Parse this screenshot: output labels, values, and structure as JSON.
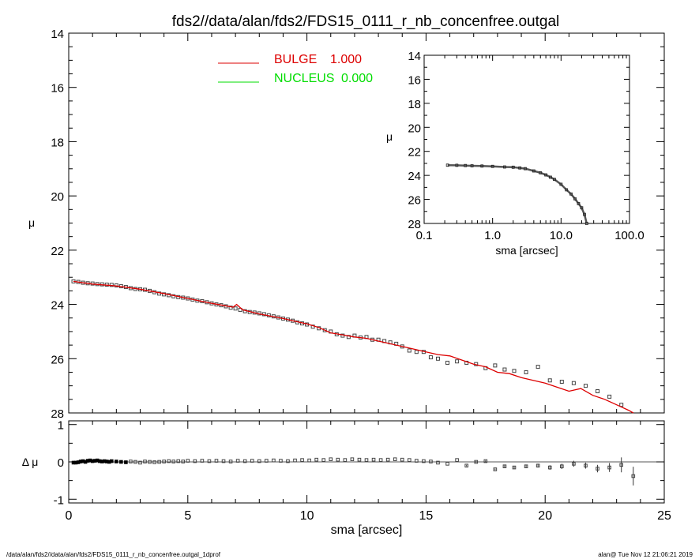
{
  "title": "fds2//data/alan/fds2/FDS15_0111_r_nb_concenfree.outgal",
  "footer_left": "/data/alan/fds2//data/alan/fds2/FDS15_0111_r_nb_concenfree.outgal_1dprof",
  "footer_right": "alan@  Tue Nov 12 21:06:21 2019",
  "colors": {
    "bulge": "#dd0000",
    "nucleus": "#00dd00",
    "data": "#555555",
    "axis": "#000000"
  },
  "chart_data": [
    {
      "id": "main",
      "type": "line",
      "xlabel": "",
      "ylabel": "μ",
      "xlim": [
        0,
        25
      ],
      "ylim": [
        28,
        14
      ],
      "yticks": [
        14,
        16,
        18,
        20,
        22,
        24,
        26,
        28
      ],
      "legend": {
        "placement": "top-center",
        "entries": [
          {
            "name": "BULGE",
            "value": "1.000",
            "color": "#dd0000"
          },
          {
            "name": "NUCLEUS",
            "value": "0.000",
            "color": "#00dd00"
          }
        ]
      },
      "series": [
        {
          "name": "data",
          "style": "square-markers",
          "x": [
            0.2,
            0.4,
            0.6,
            0.8,
            1.0,
            1.2,
            1.4,
            1.6,
            1.8,
            2.0,
            2.2,
            2.4,
            2.6,
            2.8,
            3.0,
            3.2,
            3.4,
            3.6,
            3.8,
            4.0,
            4.2,
            4.4,
            4.6,
            4.8,
            5.0,
            5.2,
            5.4,
            5.6,
            5.8,
            6.0,
            6.2,
            6.4,
            6.6,
            6.8,
            7.0,
            7.2,
            7.4,
            7.6,
            7.8,
            8.0,
            8.2,
            8.4,
            8.6,
            8.8,
            9.0,
            9.2,
            9.4,
            9.6,
            9.8,
            10.0,
            10.25,
            10.5,
            10.75,
            11.0,
            11.25,
            11.5,
            11.75,
            12.0,
            12.25,
            12.5,
            12.75,
            13.0,
            13.25,
            13.5,
            13.75,
            14.0,
            14.3,
            14.6,
            14.9,
            15.2,
            15.5,
            15.9,
            16.3,
            16.7,
            17.1,
            17.5,
            17.9,
            18.3,
            18.7,
            19.2,
            19.7,
            20.2,
            20.7,
            21.2,
            21.7,
            22.2,
            22.7,
            23.2
          ],
          "y": [
            23.15,
            23.17,
            23.2,
            23.22,
            23.23,
            23.25,
            23.26,
            23.27,
            23.28,
            23.3,
            23.33,
            23.36,
            23.4,
            23.43,
            23.44,
            23.46,
            23.5,
            23.55,
            23.6,
            23.63,
            23.66,
            23.7,
            23.73,
            23.75,
            23.78,
            23.82,
            23.86,
            23.88,
            23.92,
            23.96,
            24.0,
            24.03,
            24.07,
            24.12,
            24.15,
            24.2,
            24.25,
            24.28,
            24.3,
            24.33,
            24.36,
            24.4,
            24.44,
            24.48,
            24.52,
            24.56,
            24.6,
            24.66,
            24.7,
            24.74,
            24.82,
            24.88,
            24.95,
            25.0,
            25.1,
            25.15,
            25.2,
            25.15,
            25.22,
            25.2,
            25.3,
            25.3,
            25.35,
            25.4,
            25.45,
            25.55,
            25.7,
            25.75,
            25.75,
            25.95,
            26.0,
            26.15,
            26.1,
            26.15,
            26.2,
            26.35,
            26.25,
            26.4,
            26.45,
            26.5,
            26.3,
            26.8,
            26.85,
            26.9,
            27.0,
            27.2,
            27.4,
            27.7
          ]
        },
        {
          "name": "BULGE",
          "style": "line",
          "color": "#dd0000",
          "x": [
            0.2,
            1,
            2,
            3,
            4,
            5,
            6,
            6.9,
            7.05,
            7.3,
            8,
            9,
            10,
            10.5,
            11,
            11.5,
            12,
            12.5,
            13,
            13.5,
            14,
            14.5,
            15,
            15.5,
            16,
            16.5,
            17,
            17.5,
            18,
            18.5,
            19,
            19.5,
            20,
            20.5,
            21,
            21.5,
            22,
            22.5,
            23,
            23.5,
            23.7
          ],
          "y": [
            23.15,
            23.25,
            23.32,
            23.44,
            23.6,
            23.78,
            23.96,
            24.1,
            24.0,
            24.2,
            24.35,
            24.52,
            24.72,
            24.85,
            25.05,
            25.12,
            25.2,
            25.25,
            25.35,
            25.45,
            25.55,
            25.65,
            25.75,
            25.85,
            25.9,
            26.05,
            26.2,
            26.3,
            26.5,
            26.55,
            26.7,
            26.8,
            26.9,
            27.05,
            27.2,
            27.1,
            27.35,
            27.5,
            27.7,
            27.9,
            28.0
          ]
        }
      ]
    },
    {
      "id": "inset",
      "type": "line",
      "xlabel": "sma [arcsec]",
      "ylabel": "μ",
      "xscale": "log",
      "xlim": [
        0.1,
        100.0
      ],
      "xticks": [
        "0.1",
        "1.0",
        "10.0",
        "100.0"
      ],
      "ylim": [
        28,
        14
      ],
      "yticks": [
        14,
        16,
        18,
        20,
        22,
        24,
        26,
        28
      ],
      "series": [
        {
          "name": "data",
          "style": "line-with-markers",
          "x": [
            0.22,
            0.3,
            0.4,
            0.5,
            0.7,
            1.0,
            1.5,
            2.0,
            2.5,
            3.0,
            4.0,
            5.0,
            6.0,
            7.0,
            8.0,
            10.0,
            12.0,
            14.0,
            16.0,
            18.0,
            20.0,
            22.0,
            23.7
          ],
          "y": [
            23.15,
            23.16,
            23.18,
            23.2,
            23.22,
            23.25,
            23.3,
            23.32,
            23.38,
            23.44,
            23.63,
            23.78,
            23.96,
            24.15,
            24.33,
            24.74,
            25.2,
            25.55,
            25.95,
            26.35,
            26.7,
            27.25,
            28.0
          ]
        }
      ]
    },
    {
      "id": "residual",
      "type": "scatter",
      "xlabel": "sma [arcsec]",
      "ylabel": "Δ μ",
      "xlim": [
        0,
        25
      ],
      "xticks": [
        0,
        5,
        10,
        15,
        20,
        25
      ],
      "ylim": [
        -1.1,
        1.1
      ],
      "yticks": [
        1,
        0,
        -1
      ],
      "series": [
        {
          "name": "residual",
          "style": "square-markers-with-errorbars",
          "x": [
            0.2,
            0.3,
            0.4,
            0.5,
            0.6,
            0.7,
            0.8,
            0.9,
            1.0,
            1.1,
            1.2,
            1.3,
            1.4,
            1.5,
            1.6,
            1.7,
            1.8,
            2.0,
            2.2,
            2.4,
            2.6,
            2.8,
            3.0,
            3.2,
            3.4,
            3.6,
            3.8,
            4.0,
            4.2,
            4.4,
            4.6,
            4.8,
            5.0,
            5.3,
            5.6,
            5.9,
            6.2,
            6.5,
            6.8,
            7.1,
            7.4,
            7.7,
            8.0,
            8.3,
            8.6,
            8.9,
            9.2,
            9.5,
            9.8,
            10.1,
            10.4,
            10.7,
            11.0,
            11.3,
            11.6,
            11.9,
            12.2,
            12.5,
            12.8,
            13.1,
            13.4,
            13.7,
            14.0,
            14.3,
            14.6,
            14.9,
            15.2,
            15.5,
            15.9,
            16.3,
            16.7,
            17.1,
            17.5,
            17.9,
            18.3,
            18.7,
            19.2,
            19.7,
            20.2,
            20.7,
            21.2,
            21.7,
            22.2,
            22.7,
            23.2,
            23.7
          ],
          "y": [
            -0.02,
            -0.02,
            -0.01,
            0.01,
            0.02,
            0.0,
            0.03,
            0.04,
            0.02,
            0.03,
            0.04,
            0.02,
            0.01,
            0.02,
            0.01,
            0.0,
            0.02,
            0.01,
            0.0,
            -0.01,
            0.01,
            0.0,
            -0.02,
            0.01,
            0.0,
            -0.01,
            0.0,
            0.01,
            0.02,
            0.01,
            0.02,
            0.01,
            0.03,
            0.02,
            0.03,
            0.02,
            0.03,
            0.02,
            0.01,
            0.03,
            0.02,
            0.03,
            0.02,
            0.03,
            0.04,
            0.03,
            0.02,
            0.04,
            0.05,
            0.04,
            0.06,
            0.05,
            0.07,
            0.06,
            0.05,
            0.07,
            0.06,
            0.05,
            0.06,
            0.05,
            0.06,
            0.07,
            0.06,
            0.05,
            0.03,
            0.02,
            0.01,
            -0.02,
            -0.05,
            0.05,
            -0.1,
            0.0,
            0.02,
            -0.2,
            -0.12,
            -0.15,
            -0.12,
            -0.1,
            -0.15,
            -0.12,
            -0.05,
            -0.1,
            -0.18,
            -0.15,
            -0.08,
            -0.38
          ],
          "err": [
            0.01,
            0.01,
            0.01,
            0.01,
            0.01,
            0.01,
            0.01,
            0.01,
            0.01,
            0.01,
            0.01,
            0.01,
            0.01,
            0.01,
            0.01,
            0.01,
            0.01,
            0.01,
            0.01,
            0.01,
            0.01,
            0.01,
            0.01,
            0.01,
            0.01,
            0.01,
            0.01,
            0.01,
            0.01,
            0.01,
            0.01,
            0.01,
            0.01,
            0.01,
            0.01,
            0.01,
            0.01,
            0.01,
            0.01,
            0.01,
            0.01,
            0.01,
            0.01,
            0.01,
            0.01,
            0.01,
            0.01,
            0.01,
            0.01,
            0.01,
            0.01,
            0.01,
            0.01,
            0.01,
            0.01,
            0.01,
            0.01,
            0.01,
            0.01,
            0.01,
            0.01,
            0.01,
            0.01,
            0.01,
            0.01,
            0.01,
            0.01,
            0.01,
            0.01,
            0.01,
            0.02,
            0.02,
            0.02,
            0.02,
            0.03,
            0.03,
            0.04,
            0.05,
            0.06,
            0.07,
            0.08,
            0.08,
            0.1,
            0.12,
            0.2,
            0.25
          ]
        }
      ],
      "zero_line": true
    }
  ]
}
